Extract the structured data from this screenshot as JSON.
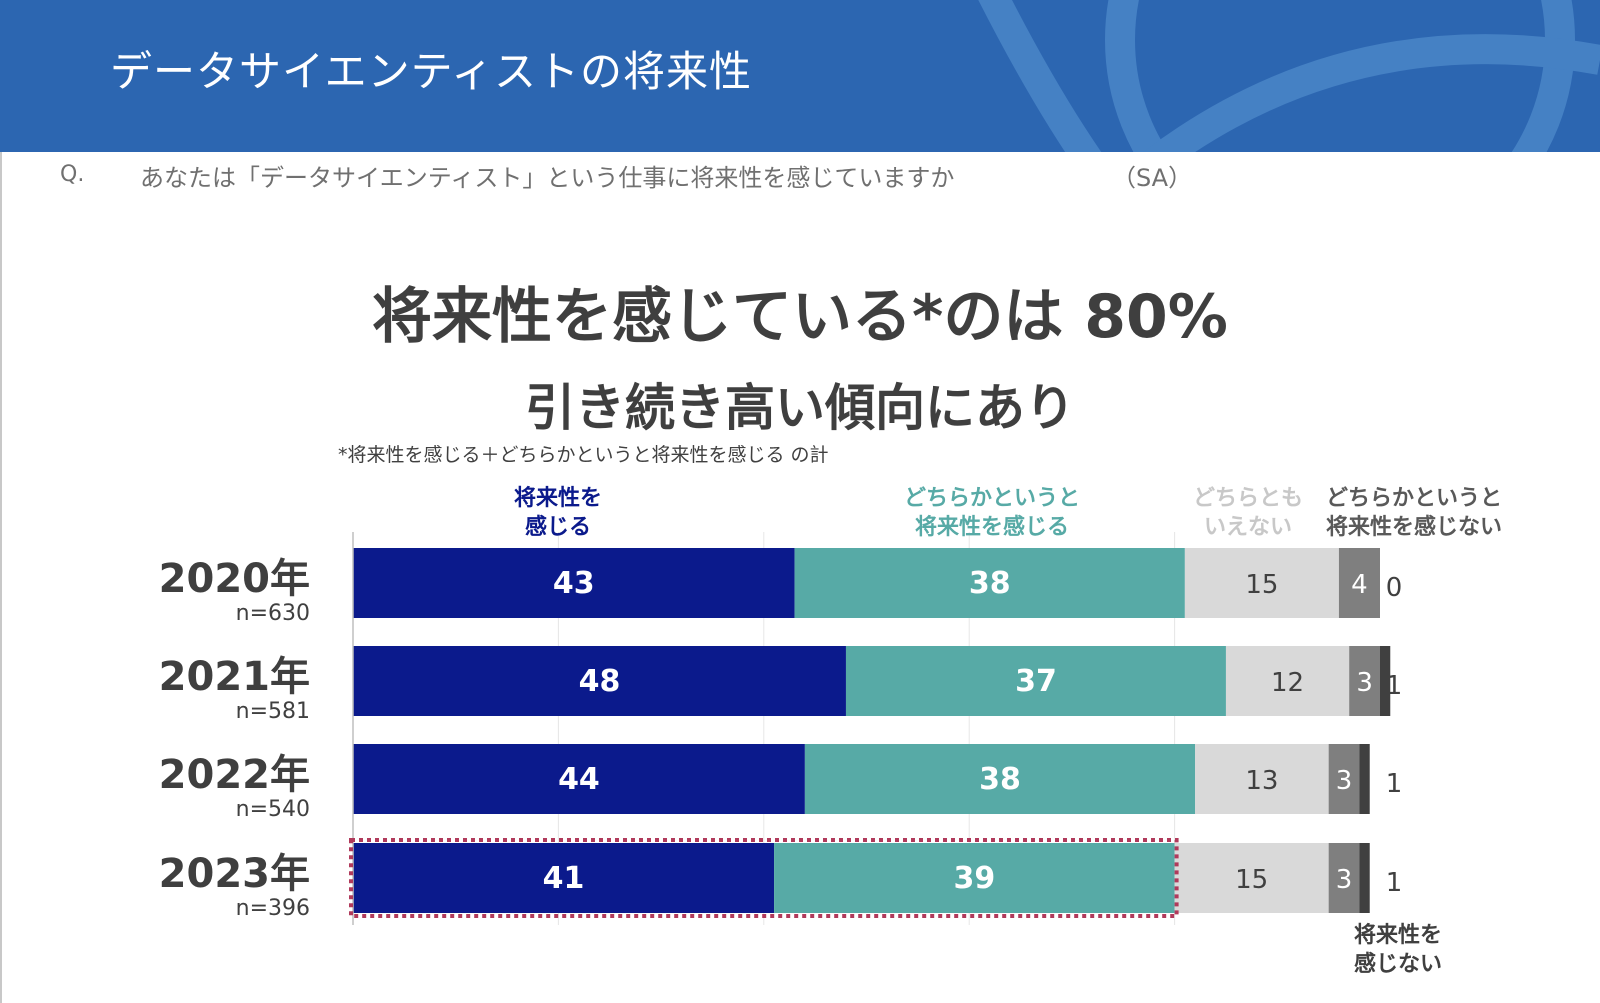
{
  "header": {
    "title": "データサイエンティストの将来性",
    "color": "#2c66b1"
  },
  "question": {
    "label": "Q.",
    "text": "あなたは「データサイエンティスト」という仕事に将来性を感じていますか",
    "type": "（SA）"
  },
  "headline": "将来性を感じている*のは 80%",
  "subheadline": "引き続き高い傾向にあり",
  "footnote": "*将来性を感じる＋どちらかというと将来性を感じる の計",
  "chart_data": {
    "type": "bar",
    "orientation": "horizontal",
    "stacked": true,
    "xlim": [
      0,
      100
    ],
    "grid": true,
    "legend_position": "top",
    "categories": [
      {
        "year": "2020年",
        "n": "n=630"
      },
      {
        "year": "2021年",
        "n": "n=581"
      },
      {
        "year": "2022年",
        "n": "n=540"
      },
      {
        "year": "2023年",
        "n": "n=396"
      }
    ],
    "series": [
      {
        "name": "将来性を感じる",
        "values": [
          43,
          48,
          44,
          41
        ],
        "color": "#0b1a8c",
        "label_color": "#ffffff",
        "bold": true
      },
      {
        "name": "どちらかというと将来性を感じる",
        "values": [
          38,
          37,
          38,
          39
        ],
        "color": "#57aaa6",
        "label_color": "#ffffff",
        "bold": true
      },
      {
        "name": "どちらともいえない",
        "values": [
          15,
          12,
          13,
          15
        ],
        "color": "#d9d9d9",
        "label_color": "#404040",
        "bold": false
      },
      {
        "name": "どちらかというと将来性を感じない",
        "values": [
          4,
          3,
          3,
          3
        ],
        "color": "#7f7f7f",
        "label_color": "#ffffff",
        "bold": false
      },
      {
        "name": "将来性を感じない",
        "values": [
          0,
          1,
          1,
          1
        ],
        "color": "#404040",
        "label_color": "#404040",
        "bold": false
      }
    ],
    "legend_labels": [
      {
        "lines": [
          "将来性を",
          "感じる"
        ],
        "color": "#0b1a8c"
      },
      {
        "lines": [
          "どちらかというと",
          "将来性を感じる"
        ],
        "color": "#57aaa6"
      },
      {
        "lines": [
          "どちらとも",
          "いえない"
        ],
        "color": "#c8c8c8"
      },
      {
        "lines": [
          "どちらかというと",
          "将来性を感じない"
        ],
        "color": "#595959"
      },
      {
        "lines": [
          "将来性を",
          "感じない"
        ],
        "color": "#404040"
      }
    ],
    "highlight": {
      "category_index": 3,
      "series": [
        0,
        1
      ],
      "color": "#b03a5b"
    }
  }
}
